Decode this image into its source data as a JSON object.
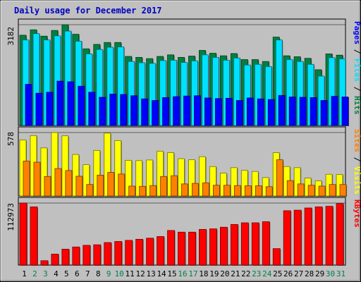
{
  "chart_data": [
    {
      "type": "bar",
      "title": "Daily usage for December 2017",
      "categories": [
        "1",
        "2",
        "3",
        "4",
        "5",
        "6",
        "7",
        "8",
        "9",
        "10",
        "11",
        "12",
        "13",
        "14",
        "15",
        "16",
        "17",
        "18",
        "19",
        "20",
        "21",
        "22",
        "23",
        "24",
        "25",
        "26",
        "27",
        "28",
        "29",
        "30",
        "31"
      ],
      "weekend_days": [
        "2",
        "3",
        "9",
        "10",
        "16",
        "17",
        "23",
        "24",
        "30",
        "31"
      ],
      "ymax_label": "3182",
      "ymax": 3182,
      "right_labels": [
        "Pages",
        "/",
        "Files",
        "/",
        "Hits"
      ],
      "series": [
        {
          "name": "Hits",
          "color": "#008040",
          "values": [
            2850,
            3020,
            2820,
            3000,
            3182,
            2880,
            2420,
            2560,
            2620,
            2620,
            2180,
            2150,
            2110,
            2180,
            2230,
            2150,
            2190,
            2370,
            2280,
            2200,
            2270,
            2080,
            2080,
            2020,
            2790,
            2200,
            2170,
            2120,
            1760,
            2260,
            2220
          ]
        },
        {
          "name": "Files",
          "color": "#00e0ff",
          "values": [
            2700,
            2900,
            2700,
            2830,
            2980,
            2660,
            2260,
            2400,
            2470,
            2480,
            2020,
            1980,
            1960,
            2050,
            2060,
            1990,
            2040,
            2230,
            2150,
            2060,
            2130,
            1910,
            1930,
            1860,
            2700,
            2080,
            2020,
            1930,
            1560,
            2140,
            2100
          ]
        },
        {
          "name": "Pages",
          "color": "#0000ff",
          "values": [
            1300,
            1020,
            1050,
            1400,
            1380,
            1240,
            1050,
            890,
            990,
            980,
            940,
            840,
            790,
            880,
            910,
            930,
            940,
            870,
            850,
            860,
            790,
            870,
            840,
            820,
            950,
            900,
            890,
            880,
            790,
            920,
            900
          ]
        }
      ]
    },
    {
      "type": "bar",
      "categories": [
        "1",
        "2",
        "3",
        "4",
        "5",
        "6",
        "7",
        "8",
        "9",
        "10",
        "11",
        "12",
        "13",
        "14",
        "15",
        "16",
        "17",
        "18",
        "19",
        "20",
        "21",
        "22",
        "23",
        "24",
        "25",
        "26",
        "27",
        "28",
        "29",
        "30",
        "31"
      ],
      "ymax_label": "578",
      "ymax": 578,
      "right_labels": [
        "Sites",
        "/",
        "Visits"
      ],
      "series": [
        {
          "name": "Visits",
          "color": "#ffff00",
          "values": [
            510,
            550,
            438,
            578,
            548,
            378,
            285,
            415,
            573,
            505,
            325,
            322,
            328,
            408,
            395,
            340,
            330,
            358,
            268,
            208,
            258,
            233,
            223,
            168,
            395,
            268,
            258,
            163,
            138,
            198,
            196
          ]
        },
        {
          "name": "Sites",
          "color": "#ff8000",
          "values": [
            318,
            308,
            178,
            250,
            232,
            180,
            105,
            190,
            215,
            200,
            90,
            88,
            95,
            178,
            185,
            110,
            115,
            120,
            98,
            98,
            95,
            93,
            93,
            85,
            330,
            140,
            110,
            98,
            90,
            105,
            105
          ]
        }
      ]
    },
    {
      "type": "bar",
      "categories": [
        "1",
        "2",
        "3",
        "4",
        "5",
        "6",
        "7",
        "8",
        "9",
        "10",
        "11",
        "12",
        "13",
        "14",
        "15",
        "16",
        "17",
        "18",
        "19",
        "20",
        "21",
        "22",
        "23",
        "24",
        "25",
        "26",
        "27",
        "28",
        "29",
        "30",
        "31"
      ],
      "ymax_label": "112973",
      "ymax": 112973,
      "right_labels": [
        "KBytes"
      ],
      "series": [
        {
          "name": "KBytes",
          "color": "#ff0000",
          "values": [
            112973,
            106000,
            8000,
            20000,
            29000,
            33000,
            36000,
            37000,
            41000,
            43000,
            45000,
            47000,
            49000,
            52000,
            63000,
            60000,
            60000,
            65000,
            66000,
            69000,
            74000,
            77000,
            77000,
            79000,
            30000,
            99000,
            100000,
            104000,
            106000,
            107000,
            112000
          ]
        }
      ]
    }
  ]
}
